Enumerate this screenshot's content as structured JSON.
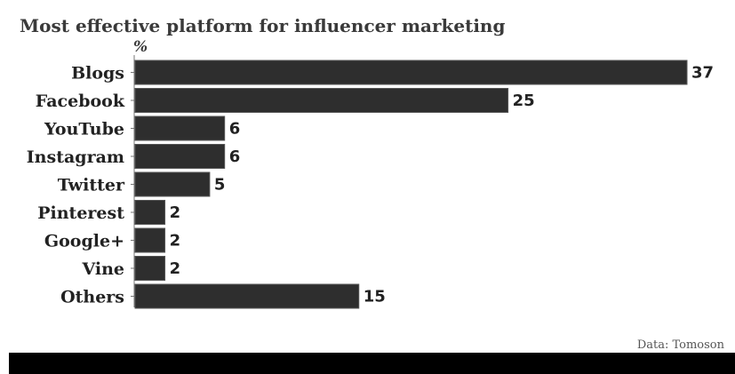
{
  "chart_data": {
    "type": "bar",
    "orientation": "horizontal",
    "title": "Most effective platform for influencer marketing",
    "unit": "%",
    "categories": [
      "Blogs",
      "Facebook",
      "YouTube",
      "Instagram",
      "Twitter",
      "Pinterest",
      "Google+",
      "Vine",
      "Others"
    ],
    "values": [
      37,
      25,
      6,
      6,
      5,
      2,
      2,
      2,
      15
    ],
    "xlim": [
      0,
      37
    ],
    "grid": false,
    "legend": "none",
    "source": "Data: Tomoson",
    "bar_color": "#2e2e2e"
  }
}
